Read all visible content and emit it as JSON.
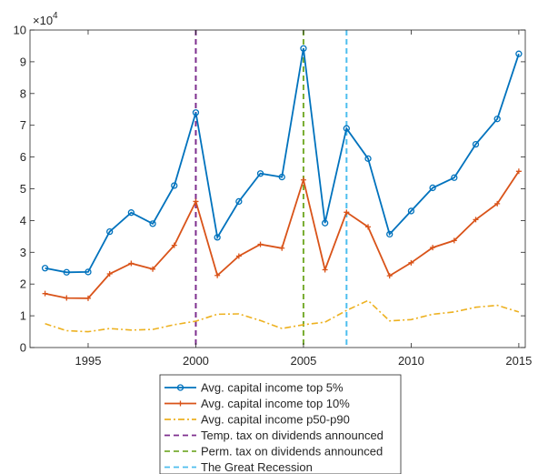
{
  "chart_data": {
    "type": "line",
    "title": "",
    "xlabel": "",
    "ylabel": "",
    "y_exponent_label": "×10",
    "y_exponent_power": "4",
    "xlim": [
      1992.3,
      2015.3
    ],
    "ylim": [
      0,
      10
    ],
    "x_ticks": [
      1995,
      2000,
      2005,
      2010,
      2015
    ],
    "y_ticks": [
      0,
      1,
      2,
      3,
      4,
      5,
      6,
      7,
      8,
      9,
      10
    ],
    "grid": false,
    "legend_position": "below plot",
    "x": [
      1993,
      1994,
      1995,
      1996,
      1997,
      1998,
      1999,
      2000,
      2001,
      2002,
      2003,
      2004,
      2005,
      2006,
      2007,
      2008,
      2009,
      2010,
      2011,
      2012,
      2013,
      2014,
      2015
    ],
    "series": [
      {
        "name": "Avg. capital income top 5%",
        "color": "#0072BD",
        "marker": "circle",
        "values": [
          2.5,
          2.37,
          2.38,
          3.65,
          4.25,
          3.9,
          5.1,
          7.4,
          3.47,
          4.6,
          5.48,
          5.37,
          9.42,
          3.92,
          6.9,
          5.95,
          3.57,
          4.3,
          5.03,
          5.35,
          6.4,
          7.2,
          9.25
        ]
      },
      {
        "name": "Avg. capital income top 10%",
        "color": "#D95319",
        "marker": "plus",
        "values": [
          1.7,
          1.56,
          1.55,
          2.32,
          2.65,
          2.47,
          3.22,
          4.6,
          2.27,
          2.88,
          3.25,
          3.13,
          5.28,
          2.45,
          4.26,
          3.8,
          2.26,
          2.67,
          3.15,
          3.37,
          4.03,
          4.53,
          5.55
        ]
      },
      {
        "name": "Avg. capital income p50-p90",
        "color": "#EDB120",
        "marker": "none",
        "dash": "dashdot",
        "values": [
          0.75,
          0.53,
          0.5,
          0.6,
          0.55,
          0.57,
          0.72,
          0.83,
          1.05,
          1.06,
          0.85,
          0.6,
          0.72,
          0.8,
          1.17,
          1.48,
          0.84,
          0.88,
          1.05,
          1.12,
          1.27,
          1.33,
          1.12
        ]
      }
    ],
    "vlines": [
      {
        "name": "Temp. tax on dividends announced",
        "x": 2000,
        "color": "#7E2F8E"
      },
      {
        "name": "Perm. tax on dividends announced",
        "x": 2005,
        "color": "#77AC30"
      },
      {
        "name": "The Great Recession",
        "x": 2007,
        "color": "#4DBEEE"
      }
    ]
  }
}
